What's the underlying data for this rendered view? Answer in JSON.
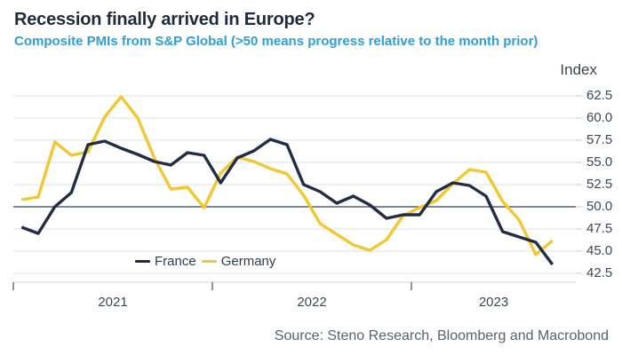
{
  "header": {
    "title": "Recession finally arrived in Europe?",
    "subtitle": "Composite PMIs from S&P Global (>50 means progress relative to the month prior)"
  },
  "source_note": "Source: Steno Research, Bloomberg and Macrobond",
  "colors": {
    "title": "#1f2a3c",
    "subtitle": "#2f9ed9",
    "france_line": "#232c47",
    "germany_line": "#f1c732",
    "gridline": "#dedfe1",
    "reference_line": "#2e4157",
    "axis_line": "#cfd3d6",
    "tick_text": "#3e4854"
  },
  "chart_data": {
    "type": "line",
    "title": "Recession finally arrived in Europe?",
    "subtitle": "Composite PMIs from S&P Global (>50 means progress relative to the month prior)",
    "y_axis_title": "Index",
    "y_axis_side": "right",
    "ylim": [
      41.5,
      64.8
    ],
    "y_tick_labels": [
      "62.5",
      "60.0",
      "57.5",
      "55.0",
      "52.5",
      "50.0",
      "47.5",
      "45.0",
      "42.5"
    ],
    "reference_line": 50.0,
    "grid": "horizontal",
    "legend_position": "bottom-left-inside",
    "x_tick_years": [
      "2021",
      "2022",
      "2023"
    ],
    "x": [
      "2021-01",
      "2021-02",
      "2021-03",
      "2021-04",
      "2021-05",
      "2021-06",
      "2021-07",
      "2021-08",
      "2021-09",
      "2021-10",
      "2021-11",
      "2021-12",
      "2022-01",
      "2022-02",
      "2022-03",
      "2022-04",
      "2022-05",
      "2022-06",
      "2022-07",
      "2022-08",
      "2022-09",
      "2022-10",
      "2022-11",
      "2022-12",
      "2023-01",
      "2023-02",
      "2023-03",
      "2023-04",
      "2023-05",
      "2023-06",
      "2023-07",
      "2023-08",
      "2023-09"
    ],
    "series": [
      {
        "name": "France",
        "color": "#232c47",
        "values": [
          47.7,
          47.0,
          50.0,
          51.6,
          57.0,
          57.4,
          56.6,
          55.9,
          55.1,
          54.7,
          56.1,
          55.8,
          52.7,
          55.5,
          56.3,
          57.6,
          57.0,
          52.5,
          51.7,
          50.4,
          51.2,
          50.2,
          48.7,
          49.1,
          49.1,
          51.7,
          52.7,
          52.4,
          51.2,
          47.2,
          46.6,
          46.0,
          43.5
        ]
      },
      {
        "name": "Germany",
        "color": "#f1c732",
        "values": [
          50.8,
          51.1,
          57.3,
          55.8,
          56.2,
          60.1,
          62.4,
          60.0,
          55.5,
          52.0,
          52.2,
          49.9,
          53.8,
          55.6,
          55.1,
          54.3,
          53.7,
          51.3,
          48.1,
          46.9,
          45.7,
          45.1,
          46.3,
          49.0,
          49.9,
          50.7,
          52.6,
          54.2,
          53.9,
          50.6,
          48.5,
          44.6,
          46.2
        ]
      }
    ]
  }
}
